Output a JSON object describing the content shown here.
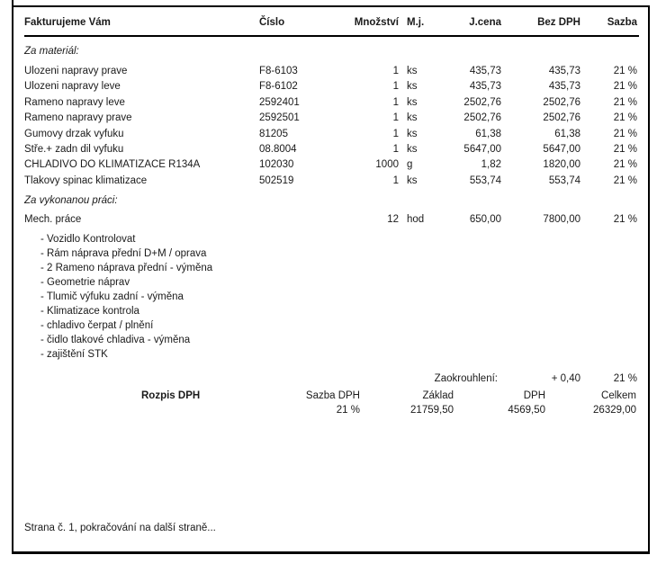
{
  "header": {
    "columns": {
      "name": "Fakturujeme Vám",
      "cislo": "Číslo",
      "mnozstvi": "Množství",
      "mj": "M.j.",
      "jcena": "J.cena",
      "bez_dph": "Bez DPH",
      "sazba": "Sazba"
    }
  },
  "sections": {
    "material_label": "Za materiál:",
    "labor_label": "Za vykonanou práci:"
  },
  "material_items": [
    {
      "name": "Ulozeni napravy prave",
      "cislo": "F8-6103",
      "mnozstvi": "1",
      "mj": "ks",
      "jcena": "435,73",
      "bez_dph": "435,73",
      "sazba": "21 %"
    },
    {
      "name": "Ulozeni napravy leve",
      "cislo": "F8-6102",
      "mnozstvi": "1",
      "mj": "ks",
      "jcena": "435,73",
      "bez_dph": "435,73",
      "sazba": "21 %"
    },
    {
      "name": "Rameno napravy leve",
      "cislo": "2592401",
      "mnozstvi": "1",
      "mj": "ks",
      "jcena": "2502,76",
      "bez_dph": "2502,76",
      "sazba": "21 %"
    },
    {
      "name": "Rameno napravy prave",
      "cislo": "2592501",
      "mnozstvi": "1",
      "mj": "ks",
      "jcena": "2502,76",
      "bez_dph": "2502,76",
      "sazba": "21 %"
    },
    {
      "name": "Gumovy drzak vyfuku",
      "cislo": "81205",
      "mnozstvi": "1",
      "mj": "ks",
      "jcena": "61,38",
      "bez_dph": "61,38",
      "sazba": "21 %"
    },
    {
      "name": "Stře.+ zadn dil vyfuku",
      "cislo": "08.8004",
      "mnozstvi": "1",
      "mj": "ks",
      "jcena": "5647,00",
      "bez_dph": "5647,00",
      "sazba": "21 %"
    },
    {
      "name": "CHLADIVO DO KLIMATIZACE R134A",
      "cislo": "102030",
      "mnozstvi": "1000",
      "mj": "g",
      "jcena": "1,82",
      "bez_dph": "1820,00",
      "sazba": "21 %"
    },
    {
      "name": "Tlakovy spinac klimatizace",
      "cislo": "502519",
      "mnozstvi": "1",
      "mj": "ks",
      "jcena": "553,74",
      "bez_dph": "553,74",
      "sazba": "21 %"
    }
  ],
  "labor_items": [
    {
      "name": "Mech. práce",
      "cislo": "",
      "mnozstvi": "12",
      "mj": "hod",
      "jcena": "650,00",
      "bez_dph": "7800,00",
      "sazba": "21 %"
    }
  ],
  "work_details": [
    "- Vozidlo Kontrolovat",
    "- Rám náprava přední D+M / oprava",
    "- 2 Rameno náprava přední - výměna",
    "- Geometrie náprav",
    "- Tlumič výfuku zadní - výměna",
    "- Klimatizace kontrola",
    "- chladivo čerpat / plnění",
    "- čidlo tlakové chladiva - výměna",
    "- zajištění STK"
  ],
  "rounding": {
    "label": "Zaokrouhlení:",
    "value": "+ 0,40",
    "sazba": "21 %"
  },
  "vat_summary": {
    "title": "Rozpis DPH",
    "col_sazba": "Sazba DPH",
    "col_zaklad": "Základ",
    "col_dph": "DPH",
    "col_celkem": "Celkem",
    "sazba": "21 %",
    "zaklad": "21759,50",
    "dph": "4569,50",
    "celkem": "26329,00"
  },
  "footer": {
    "text": "Strana č. 1, pokračování na další straně..."
  }
}
